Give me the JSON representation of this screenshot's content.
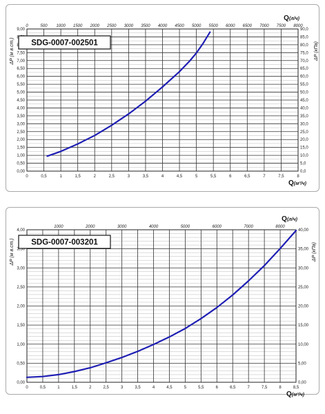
{
  "chart_data": [
    {
      "type": "line",
      "title": "SDG-0007-002501",
      "xlabel": "Q(м³/ч)",
      "x2label": "Q(л/ч)",
      "ylabel": "ΔP (м в.ст.)",
      "y2label": "ΔP (кПа)",
      "xlim": [
        0,
        8
      ],
      "ylim": [
        0,
        9
      ],
      "x2lim": [
        0,
        8000
      ],
      "y2lim": [
        0,
        90
      ],
      "x_ticks": [
        "0",
        "0,5",
        "1",
        "1,5",
        "2",
        "2,5",
        "3",
        "3,5",
        "4",
        "4,5",
        "5",
        "5,5",
        "6",
        "6,5",
        "7",
        "7,5",
        "8"
      ],
      "x2_ticks": [
        "0",
        "500",
        "1000",
        "1500",
        "2000",
        "2500",
        "3000",
        "3500",
        "4000",
        "4500",
        "5000",
        "5500",
        "6000",
        "6500",
        "7000",
        "7500",
        "8000"
      ],
      "y_ticks": [
        "0,00",
        "0,50",
        "1,00",
        "1,50",
        "2,00",
        "2,50",
        "3,00",
        "3,50",
        "4,00",
        "4,50",
        "5,00",
        "5,50",
        "6,00",
        "6,50",
        "7,00",
        "7,50",
        "8,00",
        "8,50",
        "9,00"
      ],
      "y2_ticks": [
        "0,0",
        "5,0",
        "10,0",
        "15,0",
        "20,0",
        "25,0",
        "30,0",
        "35,0",
        "40,0",
        "45,0",
        "50,0",
        "55,0",
        "60,0",
        "65,0",
        "70,0",
        "75,0",
        "80,0",
        "85,0",
        "90,0"
      ],
      "grid": true,
      "line_color": "#1f1fb4",
      "series": [
        {
          "x": [
            0.6,
            1.0,
            1.5,
            2.0,
            2.5,
            3.0,
            3.5,
            4.0,
            4.5,
            4.8,
            5.0,
            5.2,
            5.4
          ],
          "y": [
            0.95,
            1.25,
            1.72,
            2.26,
            2.9,
            3.62,
            4.43,
            5.33,
            6.3,
            6.97,
            7.48,
            8.1,
            8.8
          ]
        }
      ]
    },
    {
      "type": "line",
      "title": "SDG-0007-003201",
      "xlabel": "Q(м³/ч)",
      "x2label": "Q(л/ч)",
      "ylabel": "ΔP (м в.ст.)",
      "y2label": "ΔP (кПа)",
      "xlim": [
        0,
        8.5
      ],
      "ylim": [
        0,
        4
      ],
      "x2lim": [
        0,
        8500
      ],
      "y2lim": [
        0,
        40
      ],
      "x_ticks": [
        "0",
        "0,5",
        "1",
        "1,5",
        "2",
        "2,5",
        "3",
        "3,5",
        "4",
        "4,5",
        "5",
        "5,5",
        "6",
        "6,5",
        "7",
        "7,5",
        "8",
        "8,5"
      ],
      "x2_ticks": [
        "1000",
        "2000",
        "3000",
        "4000",
        "5000",
        "6000",
        "7000",
        "8000"
      ],
      "x2_tick_values": [
        1000,
        2000,
        3000,
        4000,
        5000,
        6000,
        7000,
        8000
      ],
      "y_ticks": [
        "0,00",
        "0,50",
        "1,00",
        "1,50",
        "2,00",
        "2,50",
        "3,00",
        "3,50",
        "4,00"
      ],
      "y2_ticks": [
        "0,00",
        "5,00",
        "10,00",
        "15,00",
        "20,00",
        "25,00",
        "30,00",
        "35,00",
        "40,00"
      ],
      "grid": true,
      "line_color": "#1f1fb4",
      "series": [
        {
          "x": [
            0,
            0.5,
            1.0,
            1.5,
            2.0,
            2.5,
            3.0,
            3.5,
            4.0,
            4.5,
            5.0,
            5.5,
            6.0,
            6.5,
            7.0,
            7.5,
            8.0,
            8.5
          ],
          "y": [
            0.13,
            0.15,
            0.2,
            0.28,
            0.38,
            0.51,
            0.65,
            0.81,
            0.99,
            1.19,
            1.41,
            1.67,
            1.96,
            2.29,
            2.66,
            3.06,
            3.51,
            3.98
          ]
        }
      ]
    }
  ]
}
